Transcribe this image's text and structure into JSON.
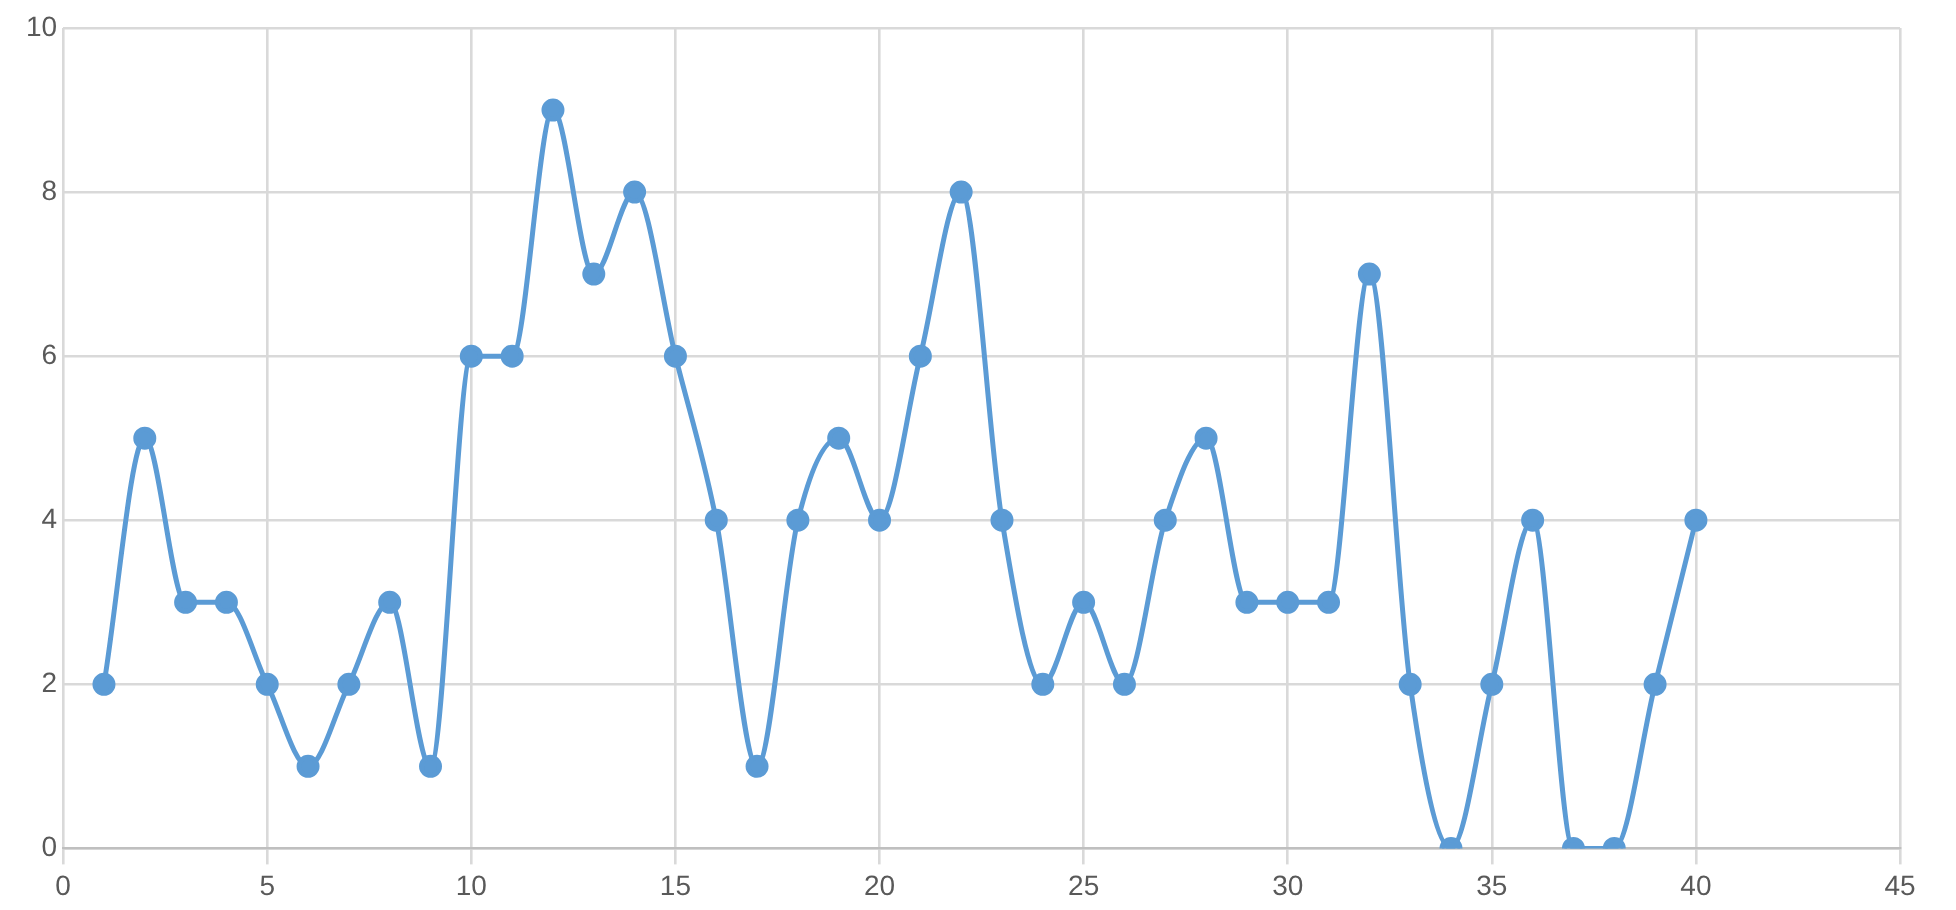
{
  "chart_data": {
    "type": "line",
    "x": [
      1,
      2,
      3,
      4,
      5,
      6,
      7,
      8,
      9,
      10,
      11,
      12,
      13,
      14,
      15,
      16,
      17,
      18,
      19,
      20,
      21,
      22,
      23,
      24,
      25,
      26,
      27,
      28,
      29,
      30,
      31,
      32,
      33,
      34,
      35,
      36,
      37,
      38,
      39,
      40
    ],
    "series": [
      {
        "color": "#5b9bd5",
        "values": [
          2,
          5,
          3,
          3,
          2,
          1,
          2,
          3,
          1,
          6,
          6,
          9,
          7,
          8,
          6,
          4,
          1,
          4,
          5,
          4,
          6,
          8,
          4,
          2,
          3,
          2,
          4,
          5,
          3,
          3,
          3,
          7,
          2,
          0,
          2,
          4,
          0,
          0,
          2,
          4
        ]
      }
    ],
    "xlim": [
      0,
      45
    ],
    "xticks": [
      0,
      5,
      10,
      15,
      20,
      25,
      30,
      35,
      40,
      45
    ],
    "ylim": [
      0,
      10
    ],
    "yticks": [
      0,
      2,
      4,
      6,
      8,
      10
    ],
    "grid": true,
    "legend": false,
    "marker": "circle",
    "line_style": "solid"
  }
}
